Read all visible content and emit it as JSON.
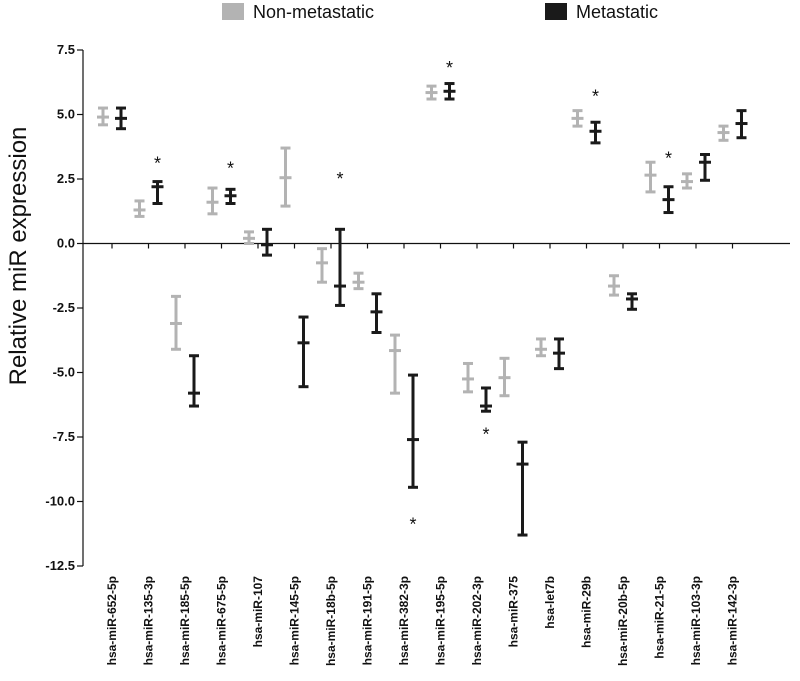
{
  "chart_data": {
    "type": "errorbar",
    "ylabel": "Relative miR expression",
    "xlabel": "",
    "ylim": [
      -12.5,
      7.5
    ],
    "yticks": [
      7.5,
      5.0,
      2.5,
      0.0,
      -2.5,
      -5.0,
      -7.5,
      -10.0,
      -12.5
    ],
    "ytick_labels": [
      "7.5",
      "5.0",
      "2.5",
      "0.0",
      "-2.5",
      "-5.0",
      "-7.5",
      "-10.0",
      "-12.5"
    ],
    "categories": [
      "hsa-miR-652-5p",
      "hsa-miR-135-3p",
      "hsa-miR-185-5p",
      "hsa-miR-675-5p",
      "hsa-miR-107",
      "hsa-miR-145-5p",
      "hsa-miR-18b-5p",
      "hsa-miR-191-5p",
      "hsa-miR-382-3p",
      "hsa-miR-195-5p",
      "hsa-miR-202-3p",
      "hsa-miR-375",
      "hsa-let7b",
      "hsa-miR-29b",
      "hsa-miR-20b-5p",
      "hsa-miR-21-5p",
      "hsa-miR-103-3p",
      "hsa-miR-142-3p"
    ],
    "series": [
      {
        "name": "Non-metastatic",
        "color": "#b3b3b3",
        "mean": [
          4.9,
          1.3,
          -3.1,
          1.6,
          0.2,
          2.55,
          -0.75,
          -1.5,
          -4.15,
          5.85,
          -5.25,
          -5.2,
          -4.1,
          4.85,
          -1.65,
          2.65,
          2.4,
          4.3
        ],
        "lower": [
          4.6,
          1.05,
          -4.1,
          1.15,
          0.0,
          1.45,
          -1.5,
          -1.75,
          -5.8,
          5.6,
          -5.75,
          -5.9,
          -4.35,
          4.55,
          -2.0,
          2.0,
          2.15,
          4.0
        ],
        "upper": [
          5.25,
          1.65,
          -2.05,
          2.15,
          0.45,
          3.7,
          -0.2,
          -1.15,
          -3.55,
          6.1,
          -4.65,
          -4.45,
          -3.7,
          5.15,
          -1.25,
          3.15,
          2.7,
          4.55
        ]
      },
      {
        "name": "Metastatic",
        "color": "#1a1a1a",
        "mean": [
          4.85,
          2.2,
          -5.8,
          1.85,
          -0.05,
          -3.85,
          -1.65,
          -2.65,
          -7.6,
          5.9,
          -6.3,
          -8.55,
          -4.25,
          4.35,
          -2.15,
          1.7,
          3.15,
          4.65
        ],
        "lower": [
          4.45,
          1.55,
          -6.3,
          1.55,
          -0.45,
          -5.55,
          -2.4,
          -3.45,
          -9.45,
          5.6,
          -6.5,
          -11.3,
          -4.85,
          3.9,
          -2.55,
          1.2,
          2.45,
          4.1
        ],
        "upper": [
          5.25,
          2.4,
          -4.35,
          2.1,
          0.55,
          -2.85,
          0.55,
          -1.95,
          -5.1,
          6.2,
          -5.6,
          -7.7,
          -3.7,
          4.7,
          -1.95,
          2.2,
          3.45,
          5.15
        ]
      }
    ],
    "significance": [
      {
        "category": "hsa-miR-135-3p",
        "label": "*",
        "y": 3.1
      },
      {
        "category": "hsa-miR-675-5p",
        "label": "*",
        "y": 2.9
      },
      {
        "category": "hsa-miR-18b-5p",
        "label": "*",
        "y": 2.5
      },
      {
        "category": "hsa-miR-382-3p",
        "label": "*",
        "y": -10.9
      },
      {
        "category": "hsa-miR-195-5p",
        "label": "*",
        "y": 6.8
      },
      {
        "category": "hsa-miR-202-3p",
        "label": "*",
        "y": -7.4
      },
      {
        "category": "hsa-miR-29b",
        "label": "*",
        "y": 5.7
      },
      {
        "category": "hsa-miR-21-5p",
        "label": "*",
        "y": 3.3
      }
    ],
    "legend": {
      "position": "top",
      "items": [
        "Non-metastatic",
        "Metastatic"
      ]
    }
  }
}
